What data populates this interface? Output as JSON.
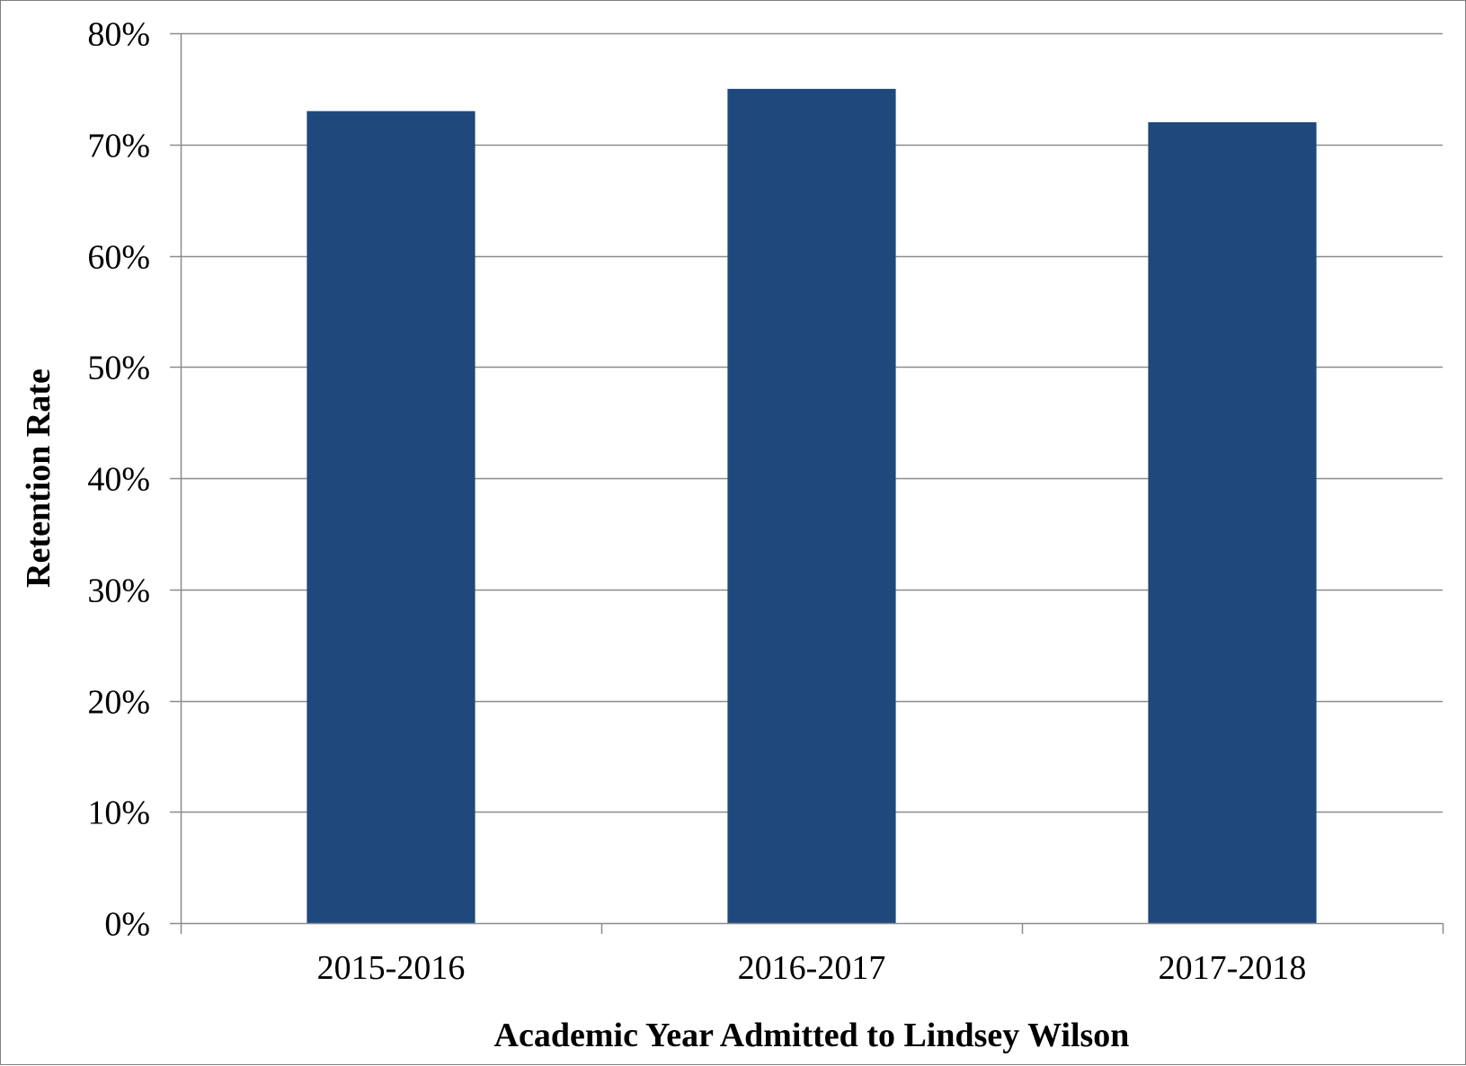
{
  "chart_data": {
    "type": "bar",
    "categories": [
      "2015-2016",
      "2016-2017",
      "2017-2018"
    ],
    "values": [
      0.73,
      0.75,
      0.72
    ],
    "ylim": [
      0,
      0.8
    ],
    "yticks": [
      0,
      0.1,
      0.2,
      0.3,
      0.4,
      0.5,
      0.6,
      0.7,
      0.8
    ],
    "ytick_labels": [
      "0%",
      "10%",
      "20%",
      "30%",
      "40%",
      "50%",
      "60%",
      "70%",
      "80%"
    ],
    "xlabel": "Academic Year Admitted to Lindsey Wilson",
    "ylabel": "Retention Rate",
    "grid": true,
    "legend": "none",
    "colors": {
      "bar": "#1f497d",
      "gridline": "#8c8c8c",
      "axis": "#8c8c8c"
    }
  }
}
